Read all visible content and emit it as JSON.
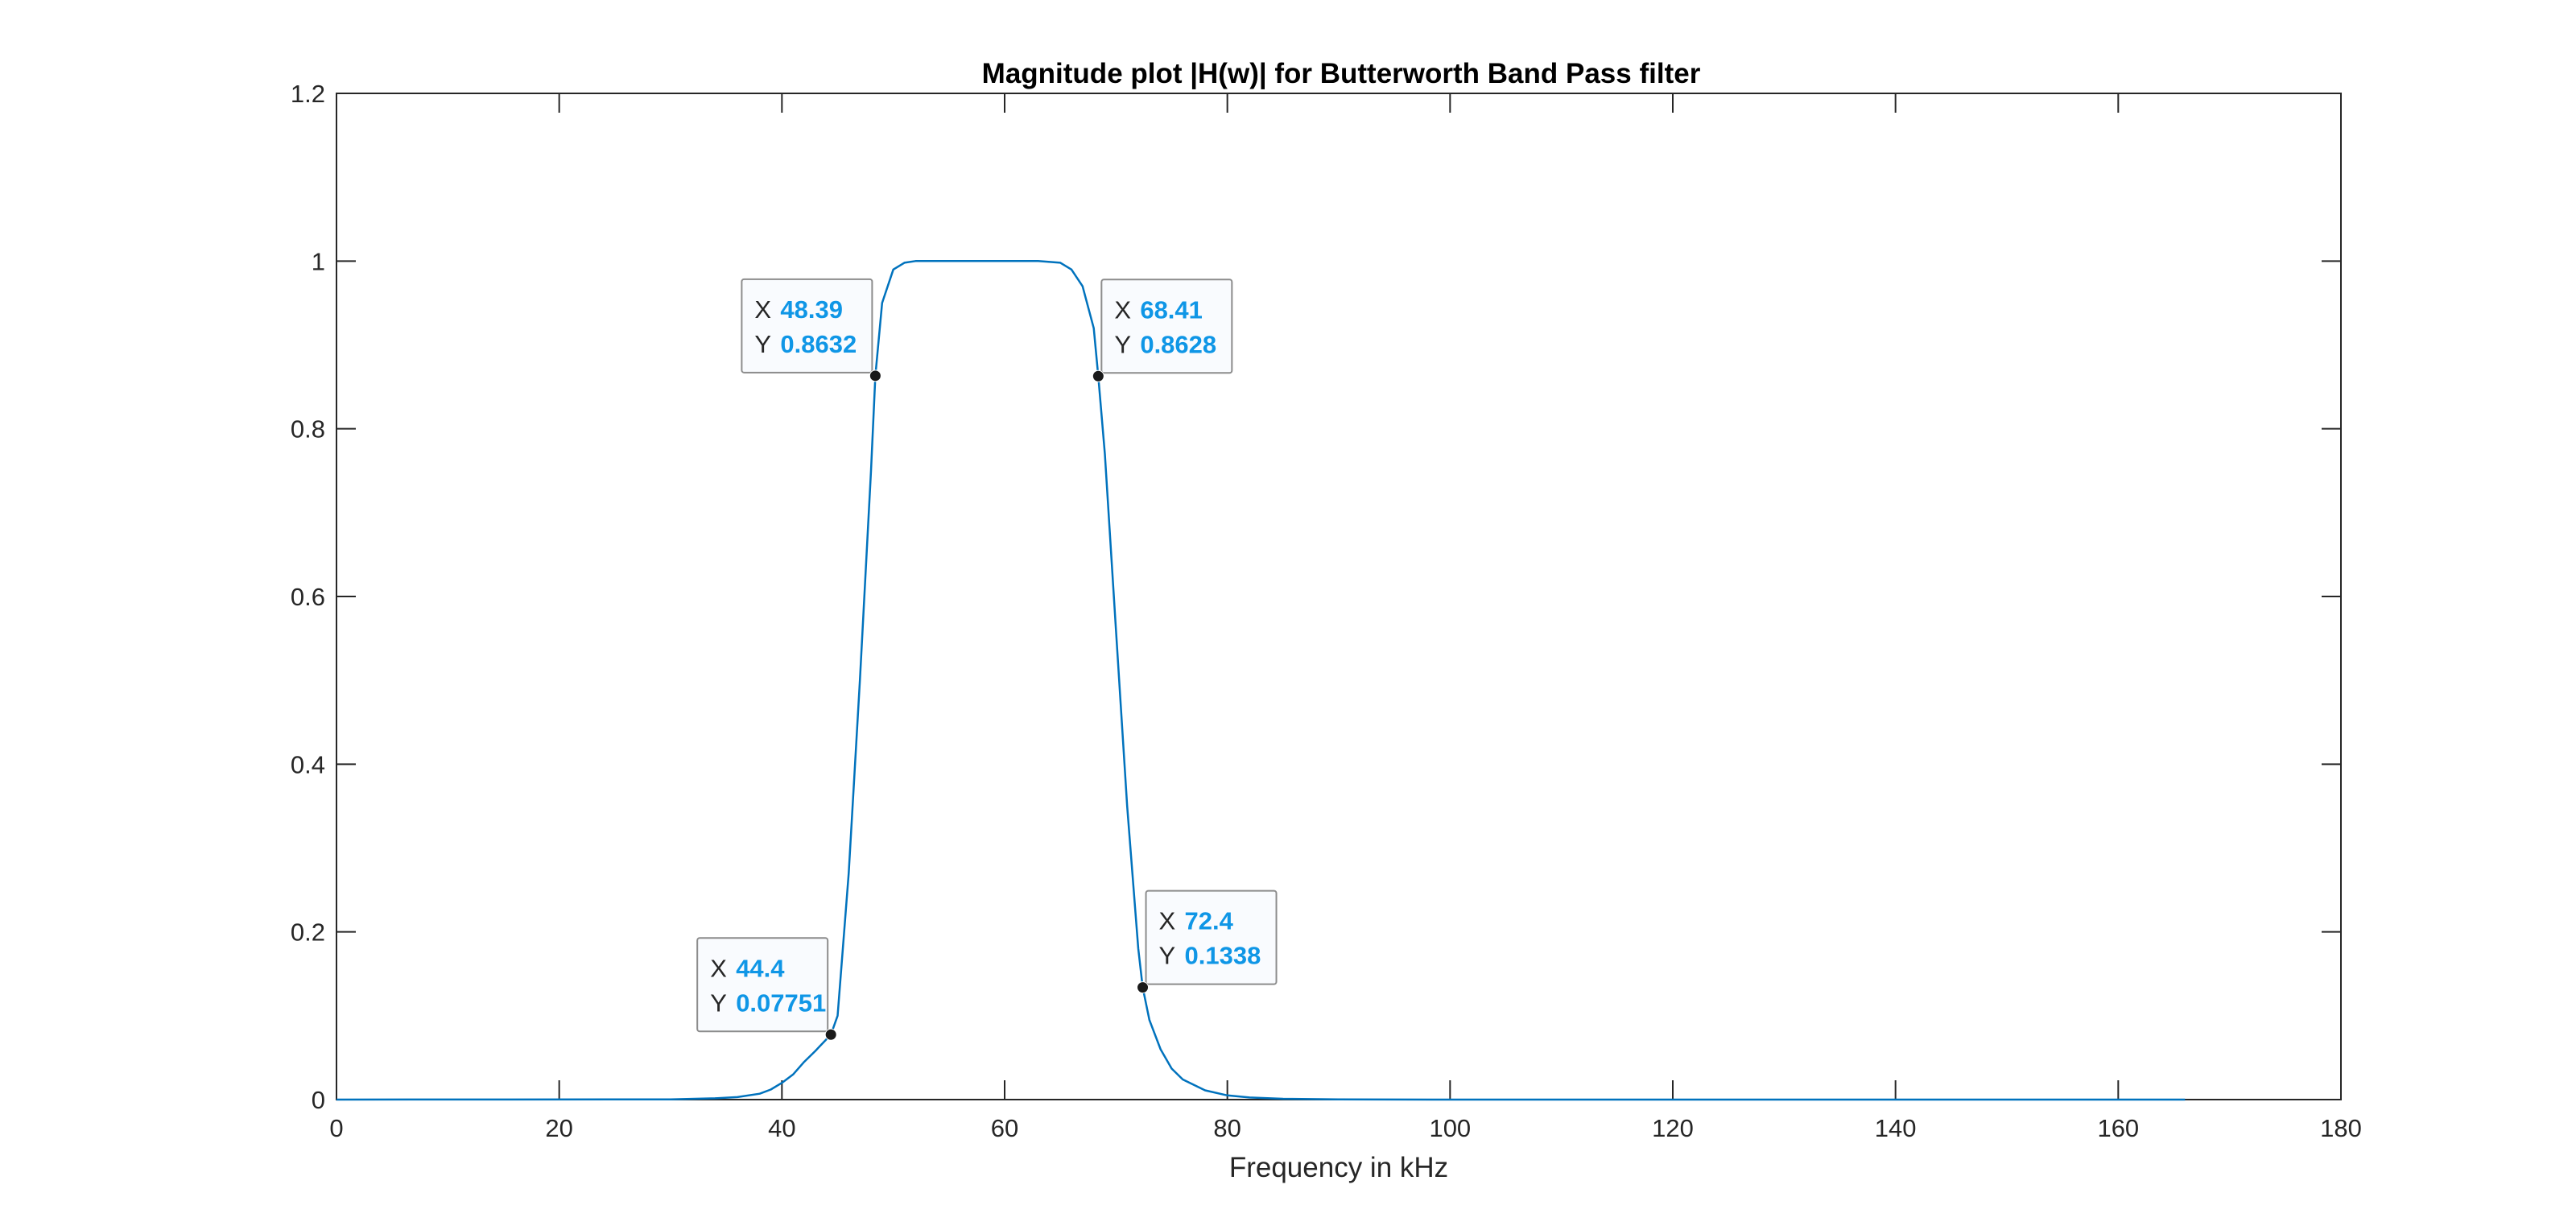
{
  "chart_data": {
    "type": "line",
    "title": "Magnitude plot |H(w)| for Butterworth Band Pass filter",
    "xlabel": "Frequency in kHz",
    "ylabel": "",
    "xlim": [
      0,
      180
    ],
    "ylim": [
      0,
      1.2
    ],
    "xticks": [
      0,
      20,
      40,
      60,
      80,
      100,
      120,
      140,
      160,
      180
    ],
    "yticks": [
      0,
      0.2,
      0.4,
      0.6,
      0.8,
      1,
      1.2
    ],
    "xtick_labels": [
      "0",
      "20",
      "40",
      "60",
      "80",
      "100",
      "120",
      "140",
      "160",
      "180"
    ],
    "ytick_labels": [
      "0",
      "0.2",
      "0.4",
      "0.6",
      "0.8",
      "1",
      "1.2"
    ],
    "grid": false,
    "line_color": "#0072bd",
    "series": [
      {
        "x": [
          0,
          30,
          34,
          36,
          38,
          39,
          40,
          41,
          42,
          43,
          44,
          44.4,
          45,
          46,
          47,
          48,
          48.39,
          49,
          50,
          51,
          52,
          55,
          58,
          60,
          63,
          65,
          66,
          67,
          68,
          68.41,
          69,
          70,
          71,
          72,
          72.4,
          73,
          74,
          75,
          76,
          78,
          80,
          82,
          85,
          90,
          100,
          120,
          140,
          166
        ],
        "y": [
          0,
          0.0003,
          0.0015,
          0.003,
          0.007,
          0.012,
          0.02,
          0.03,
          0.045,
          0.058,
          0.072,
          0.07751,
          0.1,
          0.27,
          0.5,
          0.75,
          0.8632,
          0.95,
          0.99,
          0.998,
          1,
          1,
          1,
          1,
          1,
          0.998,
          0.99,
          0.97,
          0.92,
          0.8628,
          0.77,
          0.56,
          0.35,
          0.18,
          0.1338,
          0.095,
          0.06,
          0.037,
          0.024,
          0.011,
          0.005,
          0.0025,
          0.001,
          0.0003,
          0,
          0,
          0,
          0
        ]
      }
    ],
    "datatips": [
      {
        "x_label": "X",
        "y_label": "Y",
        "x": "48.39",
        "y": "0.8632",
        "xv": 48.39,
        "yv": 0.8632,
        "placement": "upper-left"
      },
      {
        "x_label": "X",
        "y_label": "Y",
        "x": "68.41",
        "y": "0.8628",
        "xv": 68.41,
        "yv": 0.8628,
        "placement": "upper-right"
      },
      {
        "x_label": "X",
        "y_label": "Y",
        "x": "44.4",
        "y": "0.07751",
        "xv": 44.4,
        "yv": 0.07751,
        "placement": "upper-left"
      },
      {
        "x_label": "X",
        "y_label": "Y",
        "x": "72.4",
        "y": "0.1338",
        "xv": 72.4,
        "yv": 0.1338,
        "placement": "upper-right"
      }
    ],
    "datatip_value_color": "#0f96e6",
    "marker_color": "#1a1a1a"
  }
}
